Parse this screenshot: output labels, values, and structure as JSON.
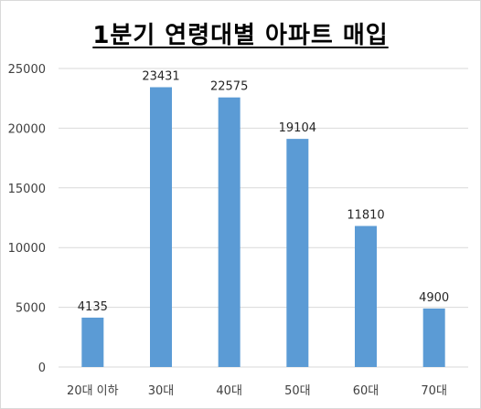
{
  "chart_data": {
    "type": "bar",
    "title": "1분기 연령대별 아파트 매입",
    "categories": [
      "20대 이하",
      "30대",
      "40대",
      "50대",
      "60대",
      "70대"
    ],
    "values": [
      4135,
      23431,
      22575,
      19104,
      11810,
      4900
    ],
    "data_labels": [
      "4135",
      "23431",
      "22575",
      "19104",
      "11810",
      "4900"
    ],
    "ylim": [
      0,
      25000
    ],
    "yticks": [
      "0",
      "5000",
      "10000",
      "15000",
      "20000",
      "25000"
    ],
    "grid": true,
    "bar_color": "#5b9bd5",
    "grid_color": "#d9d9d9"
  }
}
